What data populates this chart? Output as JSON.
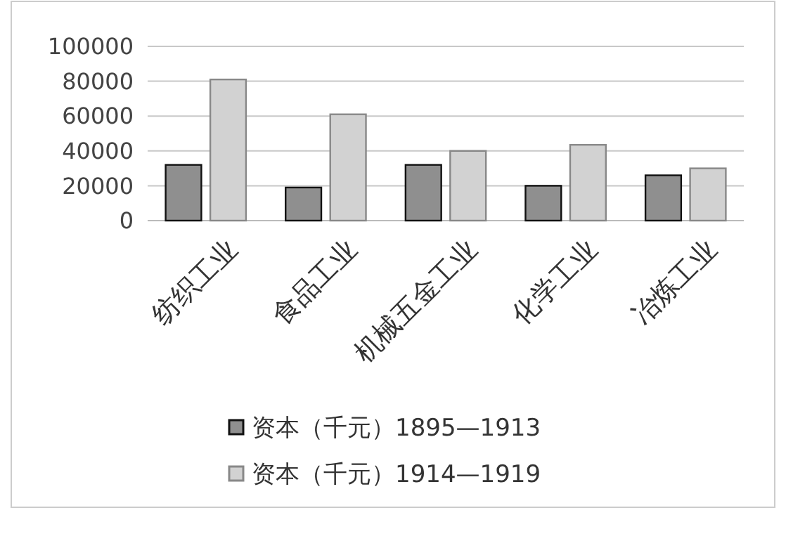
{
  "chart_data": {
    "type": "bar",
    "categories": [
      "纺织工业",
      "食品工业",
      "机械五金工业",
      "化学工业",
      "冶炼工业"
    ],
    "series": [
      {
        "name": "资本（千元）1895—1913",
        "color": "#8f8f8f",
        "values": [
          32000,
          19000,
          32000,
          20000,
          26000
        ]
      },
      {
        "name": "资本（千元）1914—1919",
        "color": "#d2d2d2",
        "values": [
          81000,
          61000,
          40000,
          43500,
          30000
        ]
      }
    ],
    "ylim": [
      0,
      100000
    ],
    "yticks": [
      0,
      20000,
      40000,
      60000,
      80000,
      100000
    ],
    "grid": "y",
    "legend": "bottom"
  }
}
